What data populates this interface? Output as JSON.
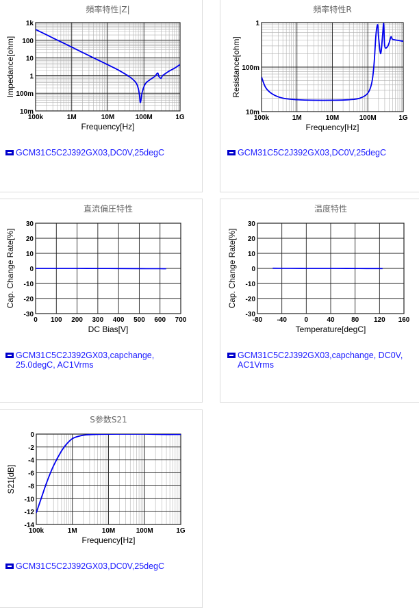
{
  "chart_data": [
    {
      "id": "impedance",
      "type": "line",
      "title": "頻率特性|Z|",
      "xlabel": "Frequency[Hz]",
      "ylabel": "Impedance[ohm]",
      "xscale": "log",
      "yscale": "log",
      "xlim": [
        100000,
        1000000000
      ],
      "ylim": [
        0.01,
        1000
      ],
      "xticks": [
        "100k",
        "1M",
        "10M",
        "100M",
        "1G"
      ],
      "yticks": [
        "1k",
        "100",
        "10",
        "1",
        "100m",
        "10m"
      ],
      "grid": true,
      "series": [
        {
          "name": "GCM31C5C2J392GX03,DC0V,25degC",
          "x": [
            100000,
            300000,
            1000000,
            3000000,
            10000000,
            20000000,
            40000000,
            60000000,
            70000000,
            75000000,
            80000000,
            90000000,
            110000000,
            150000000,
            200000000,
            240000000,
            260000000,
            300000000,
            320000000,
            350000000,
            500000000,
            700000000,
            1000000000
          ],
          "y": [
            410,
            136,
            41,
            13.6,
            4.1,
            2.0,
            0.85,
            0.4,
            0.18,
            0.08,
            0.03,
            0.12,
            0.35,
            0.6,
            0.9,
            1.4,
            0.9,
            0.7,
            0.95,
            1.1,
            1.8,
            2.6,
            4.2
          ]
        }
      ]
    },
    {
      "id": "resistance",
      "type": "line",
      "title": "頻率特性R",
      "xlabel": "Frequency[Hz]",
      "ylabel": "Resistance[ohm]",
      "xscale": "log",
      "yscale": "log",
      "xlim": [
        100000,
        1000000000
      ],
      "ylim": [
        0.01,
        1
      ],
      "xticks": [
        "100k",
        "1M",
        "10M",
        "100M",
        "1G"
      ],
      "yticks": [
        "1",
        "100m",
        "10m"
      ],
      "grid": true,
      "series": [
        {
          "name": "GCM31C5C2J392GX03,DC0V,25degC",
          "x": [
            100000,
            130000,
            200000,
            400000,
            1000000,
            3000000,
            10000000,
            30000000,
            60000000,
            100000000,
            130000000,
            150000000,
            170000000,
            190000000,
            200000000,
            230000000,
            260000000,
            280000000,
            300000000,
            350000000,
            400000000,
            450000000,
            500000000,
            700000000,
            1000000000
          ],
          "y": [
            0.06,
            0.035,
            0.025,
            0.02,
            0.0185,
            0.018,
            0.018,
            0.0185,
            0.02,
            0.026,
            0.045,
            0.12,
            0.55,
            0.9,
            0.5,
            0.2,
            0.5,
            0.95,
            0.3,
            0.28,
            0.35,
            0.48,
            0.42,
            0.4,
            0.38
          ]
        }
      ]
    },
    {
      "id": "dcbias",
      "type": "line",
      "title": "直流偏圧特性",
      "xlabel": "DC Bias[V]",
      "ylabel": "Cap. Change Rate[%]",
      "xlim": [
        0,
        700
      ],
      "ylim": [
        -30,
        30
      ],
      "xticks": [
        "0",
        "100",
        "200",
        "300",
        "400",
        "500",
        "600",
        "700"
      ],
      "yticks": [
        "30",
        "20",
        "10",
        "0",
        "-10",
        "-20",
        "-30"
      ],
      "grid": true,
      "series": [
        {
          "name": "GCM31C5C2J392GX03,capchange, 25.0degC, AC1Vrms",
          "x": [
            0,
            100,
            200,
            300,
            400,
            500,
            600,
            630
          ],
          "y": [
            0,
            0,
            0,
            -0.05,
            -0.1,
            -0.15,
            -0.2,
            -0.2
          ]
        }
      ]
    },
    {
      "id": "temperature",
      "type": "line",
      "title": "温度特性",
      "xlabel": "Temperature[degC]",
      "ylabel": "Cap. Change Rate[%]",
      "xlim": [
        -80,
        160
      ],
      "ylim": [
        -30,
        30
      ],
      "xticks": [
        "-80",
        "-40",
        "0",
        "40",
        "80",
        "120",
        "160"
      ],
      "yticks": [
        "30",
        "20",
        "10",
        "0",
        "-10",
        "-20",
        "-30"
      ],
      "grid": true,
      "series": [
        {
          "name": "GCM31C5C2J392GX03,capchange, DC0V, AC1Vrms",
          "x": [
            -55,
            -25,
            0,
            25,
            50,
            85,
            105,
            125
          ],
          "y": [
            0.1,
            0.05,
            0.02,
            0,
            -0.02,
            -0.05,
            -0.08,
            -0.1
          ]
        }
      ]
    },
    {
      "id": "s21",
      "type": "line",
      "title": "S参数S21",
      "xlabel": "Frequency[Hz]",
      "ylabel": "S21[dB]",
      "xscale": "log",
      "xlim": [
        100000,
        1000000000
      ],
      "ylim": [
        -14,
        0
      ],
      "xticks": [
        "100k",
        "1M",
        "10M",
        "100M",
        "1G"
      ],
      "yticks": [
        "0",
        "-2",
        "-4",
        "-6",
        "-8",
        "-10",
        "-12",
        "-14"
      ],
      "grid": true,
      "series": [
        {
          "name": "GCM31C5C2J392GX03,DC0V,25degC",
          "x": [
            100000,
            150000,
            200000,
            300000,
            500000,
            700000,
            1000000,
            1500000,
            2000000,
            3000000,
            5000000,
            10000000,
            30000000,
            100000000,
            300000000,
            1000000000
          ],
          "y": [
            -12.2,
            -9.3,
            -7.3,
            -4.9,
            -2.6,
            -1.5,
            -0.7,
            -0.33,
            -0.18,
            -0.08,
            -0.03,
            -0.01,
            0,
            0,
            -0.05,
            -0.05
          ]
        }
      ]
    }
  ],
  "colors": {
    "line": "#0000ee",
    "legend_text": "#1a1aff",
    "title": "#666666",
    "grid_major": "#222222",
    "grid_minor": "#b0b0b0"
  }
}
